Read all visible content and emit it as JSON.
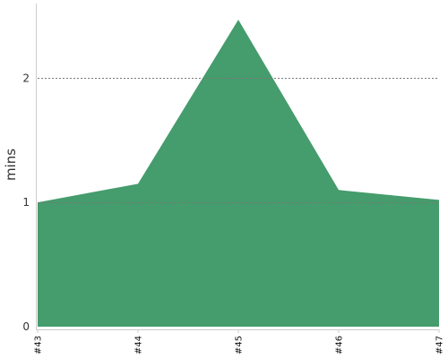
{
  "chart_data": {
    "type": "area",
    "categories": [
      "#43",
      "#44",
      "#45",
      "#46",
      "#47"
    ],
    "values": [
      1.0,
      1.15,
      2.47,
      1.1,
      1.02
    ],
    "title": "",
    "xlabel": "",
    "ylabel": "mins",
    "ylim": [
      0,
      2.6
    ],
    "yticks": [
      0,
      1,
      2
    ],
    "ytick_labels": [
      "0",
      "1",
      "2"
    ],
    "grid": "horizontal dashed at ticks 1 and 2",
    "colors": {
      "fill": "#459c6c",
      "grid": "#777777",
      "axis": "#cccccc"
    }
  }
}
